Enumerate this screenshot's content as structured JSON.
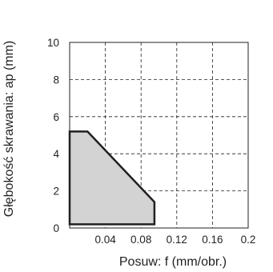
{
  "chart_data": {
    "type": "area",
    "xlabel": "Posuw: f (mm/obr.)",
    "ylabel": "Głębokość skrawania: ap (mm)",
    "xlim": [
      0,
      0.2
    ],
    "ylim": [
      0,
      10
    ],
    "x_ticks": [
      0.04,
      0.08,
      0.12,
      0.16,
      0.2
    ],
    "x_tick_labels": [
      "0.04",
      "0.08",
      "0.12",
      "0.16",
      "0.2"
    ],
    "y_ticks": [
      0,
      2,
      4,
      6,
      8,
      10
    ],
    "y_tick_labels": [
      "0",
      "2",
      "4",
      "6",
      "8",
      "10"
    ],
    "grid": "dashed",
    "region": {
      "points": [
        [
          0.0,
          0.2
        ],
        [
          0.0,
          5.2
        ],
        [
          0.02,
          5.2
        ],
        [
          0.095,
          1.4
        ],
        [
          0.095,
          0.2
        ]
      ],
      "fill": "#d3d3d3",
      "stroke": "#231f20"
    }
  }
}
